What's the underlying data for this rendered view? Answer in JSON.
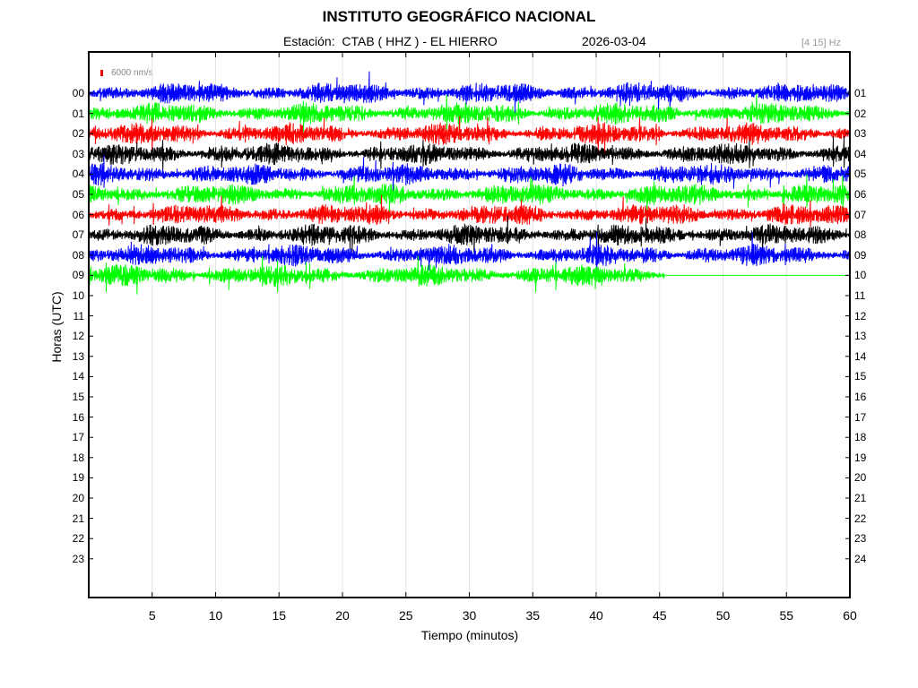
{
  "chart_data": {
    "type": "line",
    "title": "INSTITUTO GEOGRÁFICO NACIONAL",
    "station_label": "Estación:  CTAB ( HHZ ) - EL HIERRO",
    "date": "2026-03-04",
    "filter": "[4 15] Hz",
    "scale_label": "6000 nm/s",
    "xlabel": "Tiempo (minutos)",
    "ylabel": "Horas (UTC)",
    "xlim": [
      0,
      60
    ],
    "x_ticks": [
      "5",
      "10",
      "15",
      "20",
      "25",
      "30",
      "35",
      "40",
      "45",
      "50",
      "55",
      "60"
    ],
    "hours_left": [
      "00",
      "01",
      "02",
      "03",
      "04",
      "05",
      "06",
      "07",
      "08",
      "09",
      "10",
      "11",
      "12",
      "13",
      "14",
      "15",
      "16",
      "17",
      "18",
      "19",
      "20",
      "21",
      "22",
      "23"
    ],
    "hours_right": [
      "01",
      "02",
      "03",
      "04",
      "05",
      "06",
      "07",
      "08",
      "09",
      "10",
      "11",
      "12",
      "13",
      "14",
      "15",
      "16",
      "17",
      "18",
      "19",
      "20",
      "21",
      "22",
      "23",
      "24"
    ],
    "colors": [
      "#0000ff",
      "#00ff00",
      "#ff0000",
      "#000000"
    ],
    "grid": true,
    "series": [
      {
        "hour": 0,
        "color": "#0000ff",
        "end_minute": 60
      },
      {
        "hour": 1,
        "color": "#00ff00",
        "end_minute": 60
      },
      {
        "hour": 2,
        "color": "#ff0000",
        "end_minute": 60
      },
      {
        "hour": 3,
        "color": "#000000",
        "end_minute": 60
      },
      {
        "hour": 4,
        "color": "#0000ff",
        "end_minute": 60
      },
      {
        "hour": 5,
        "color": "#00ff00",
        "end_minute": 60
      },
      {
        "hour": 6,
        "color": "#ff0000",
        "end_minute": 60
      },
      {
        "hour": 7,
        "color": "#000000",
        "end_minute": 60
      },
      {
        "hour": 8,
        "color": "#0000ff",
        "end_minute": 60
      },
      {
        "hour": 9,
        "color": "#00ff00",
        "end_minute": 45.4
      }
    ]
  }
}
